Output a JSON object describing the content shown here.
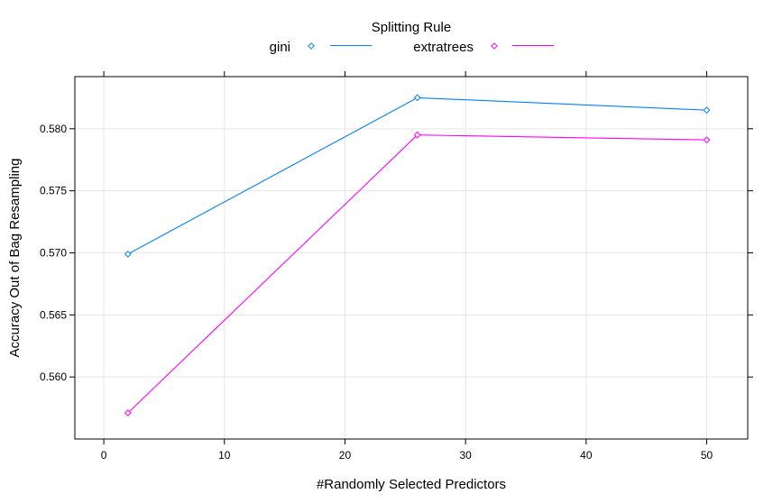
{
  "chart_data": {
    "type": "line",
    "legend_title": "Splitting Rule",
    "legend_position": "top",
    "xlabel": "#Randomly Selected Predictors",
    "ylabel": "Accuracy Out of Bag Resampling",
    "xlim": [
      -2.4,
      53.4
    ],
    "ylim": [
      0.555,
      0.5842
    ],
    "x_ticks": [
      0,
      10,
      20,
      30,
      40,
      50
    ],
    "x_tick_labels": [
      "0",
      "10",
      "20",
      "30",
      "40",
      "50"
    ],
    "y_ticks": [
      0.56,
      0.565,
      0.57,
      0.575,
      0.58
    ],
    "y_tick_labels": [
      "0.560",
      "0.565",
      "0.570",
      "0.575",
      "0.580"
    ],
    "grid": true,
    "x": [
      2,
      26,
      50
    ],
    "series": [
      {
        "name": "gini",
        "values": [
          0.5699,
          0.5825,
          0.5815
        ],
        "color": "#0080ff",
        "marker": "diamond"
      },
      {
        "name": "extratrees",
        "values": [
          0.5571,
          0.5795,
          0.5791
        ],
        "color": "#ff00ff",
        "marker": "diamond"
      }
    ]
  }
}
